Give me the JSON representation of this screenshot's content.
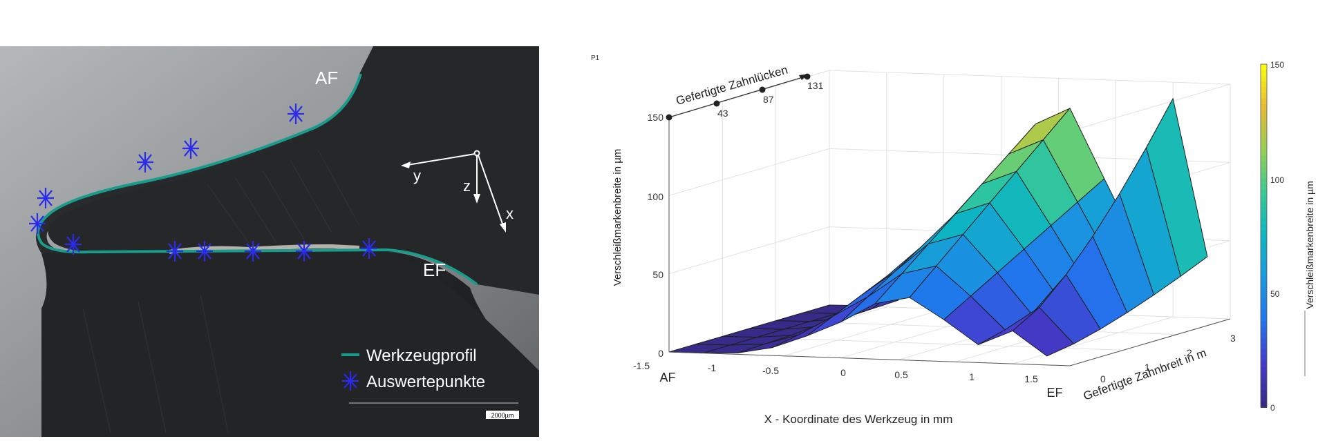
{
  "photo": {
    "label_af": "AF",
    "label_ef": "EF",
    "axis_y": "y",
    "axis_z": "z",
    "axis_x": "x",
    "legend_profile": "Werkzeugprofil",
    "legend_points": "Auswertepunkte",
    "scalebar_label": "2000µm",
    "colors": {
      "profile": "#1a9c8c",
      "points": "#2a2af0"
    }
  },
  "plot": {
    "corner_label": "P1",
    "zlabel": "Verschleißmarkenbreite in  µm",
    "xlabel": "X - Koordinate des Werkzeug in mm",
    "ylabel": "Gefertigte Zahnbreit in m",
    "x_end_left": "AF",
    "x_end_right": "EF",
    "x_ticks": [
      "-1.5",
      "-1",
      "-0.5",
      "0",
      "0.5",
      "1",
      "1.5"
    ],
    "y_ticks": [
      "0",
      "1",
      "2",
      "3"
    ],
    "z_ticks": [
      "0",
      "50",
      "100",
      "150"
    ],
    "top_axis_label": "Gefertigte Zahnlücken",
    "top_axis_ticks": [
      "43",
      "87",
      "131"
    ],
    "colorbar": {
      "label": "Verschleißmarkenbreite in  µm",
      "ticks": [
        "0",
        "50",
        "100",
        "150"
      ],
      "range": [
        0,
        150
      ],
      "colormap": "parula"
    }
  }
}
